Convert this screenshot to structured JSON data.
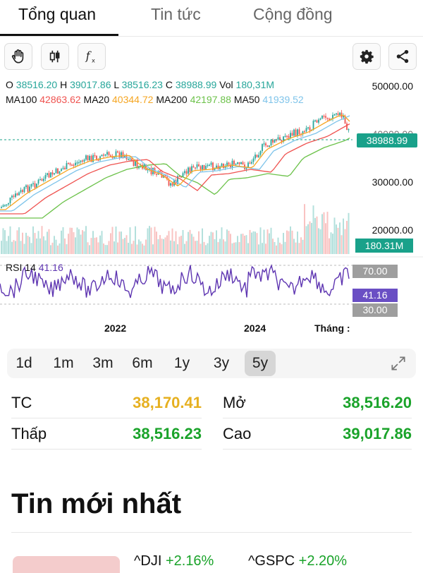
{
  "tabs": [
    {
      "label": "Tổng quan",
      "active": true
    },
    {
      "label": "Tin tức",
      "active": false
    },
    {
      "label": "Cộng đồng",
      "active": false
    }
  ],
  "toolbar": {
    "left_icons": [
      "hand-icon",
      "candlestick-icon",
      "function-icon"
    ],
    "right_icons": [
      "gear-icon",
      "share-icon"
    ]
  },
  "ohlc": {
    "o_label": "O",
    "o": "38516.20",
    "h_label": "H",
    "h": "39017.86",
    "l_label": "L",
    "l": "38516.23",
    "c_label": "C",
    "c": "38988.99",
    "vol_label": "Vol",
    "vol": "180,31M"
  },
  "ma": {
    "ma100_label": "MA100",
    "ma100": "42863.62",
    "ma20_label": "MA20",
    "ma20": "40344.72",
    "ma200_label": "MA200",
    "ma200": "42197.88",
    "ma50_label": "MA50",
    "ma50": "41939.52"
  },
  "rsi": {
    "label": "RSI 14",
    "value": "41.16",
    "upper": "70.00",
    "lower": "30.00"
  },
  "yaxis": [
    "50000.00",
    "40000.00",
    "30000.00",
    "20000.00"
  ],
  "price_tag": "38988.99",
  "vol_tag": "180.31M",
  "xaxis": {
    "years": [
      "2022",
      "2024"
    ],
    "month": "Tháng :"
  },
  "colors": {
    "up": "#26a69a",
    "down": "#ef5350",
    "ma20": "#f5a623",
    "ma50": "#7fc4ea",
    "ma100": "#ef5350",
    "ma200": "#6cc24a",
    "rsi": "#5e35b1"
  },
  "ranges": [
    {
      "label": "1d"
    },
    {
      "label": "1m"
    },
    {
      "label": "3m"
    },
    {
      "label": "6m"
    },
    {
      "label": "1y"
    },
    {
      "label": "3y"
    },
    {
      "label": "5y",
      "selected": true
    }
  ],
  "stats": {
    "tc_label": "TC",
    "tc": "38,170.41",
    "open_label": "Mở",
    "open": "38,516.20",
    "low_label": "Thấp",
    "low": "38,516.23",
    "high_label": "Cao",
    "high": "39,017.86"
  },
  "news": {
    "title": "Tin mới nhất",
    "tickers": [
      {
        "symbol": "^DJI",
        "change": "+2.16%"
      },
      {
        "symbol": "^GSPC",
        "change": "+2.20%"
      }
    ]
  }
}
